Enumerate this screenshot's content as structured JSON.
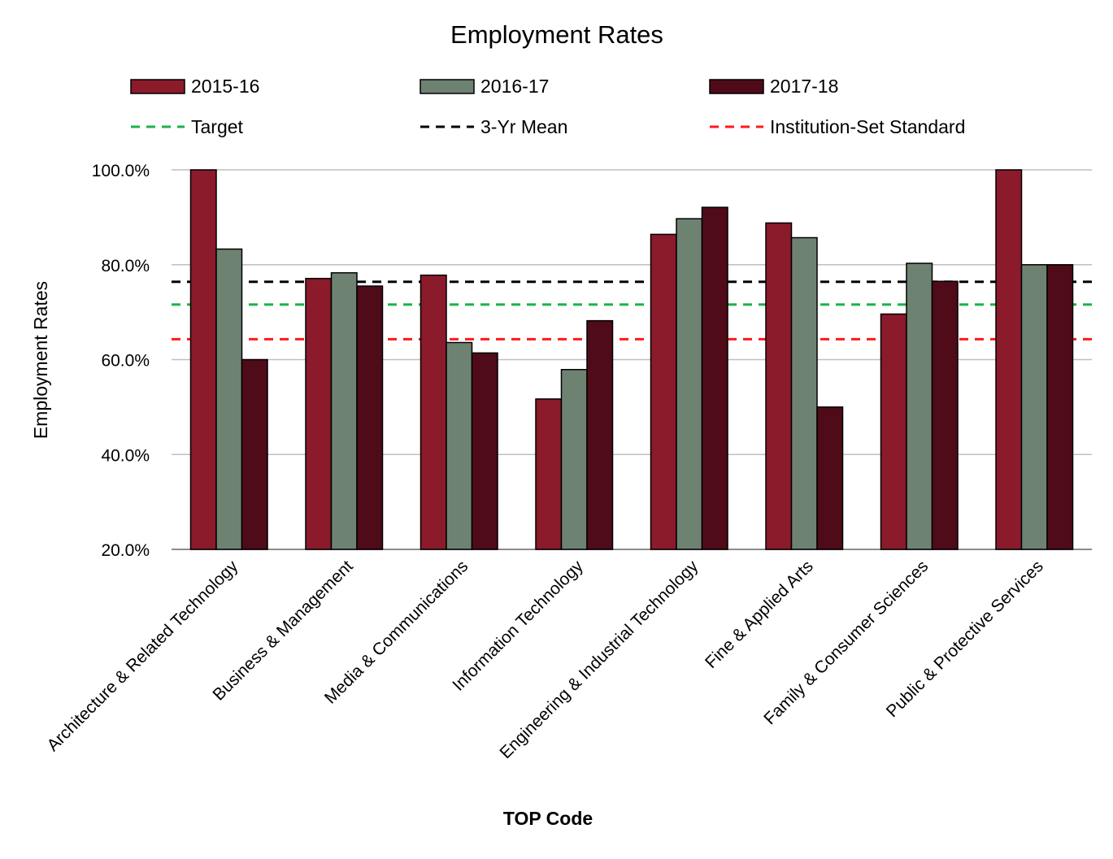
{
  "chart_data": {
    "type": "bar",
    "title": "Employment Rates",
    "xlabel": "TOP Code",
    "ylabel": "Employment Rates",
    "ylim": [
      20,
      100
    ],
    "yticks": [
      "20.0%",
      "40.0%",
      "60.0%",
      "80.0%",
      "100.0%"
    ],
    "ytick_values": [
      20,
      40,
      60,
      80,
      100
    ],
    "grid": true,
    "legend_position": "top",
    "categories": [
      "Architecture & Related Technology",
      "Business & Management",
      "Media & Communications",
      "Information Technology",
      "Engineering & Industrial Technology",
      "Fine & Applied Arts",
      "Family & Consumer Sciences",
      "Public & Protective Services"
    ],
    "series": [
      {
        "name": "2015-16",
        "color": "#8B1A2B",
        "values": [
          100,
          77.1,
          77.8,
          51.7,
          86.4,
          88.8,
          69.6,
          100
        ]
      },
      {
        "name": "2016-17",
        "color": "#6E8272",
        "values": [
          83.3,
          78.3,
          63.6,
          57.9,
          89.7,
          85.7,
          80.3,
          80
        ]
      },
      {
        "name": "2017-18",
        "color": "#4F0B18",
        "values": [
          60,
          75.5,
          61.4,
          68.2,
          92.1,
          50,
          76.5,
          80
        ]
      }
    ],
    "reference_lines": [
      {
        "name": "Target",
        "color": "#1FB24A",
        "value": 71.6
      },
      {
        "name": "3-Yr Mean",
        "color": "#000000",
        "value": 76.4
      },
      {
        "name": "Institution-Set Standard",
        "color": "#FF1A1A",
        "value": 64.3
      }
    ]
  }
}
